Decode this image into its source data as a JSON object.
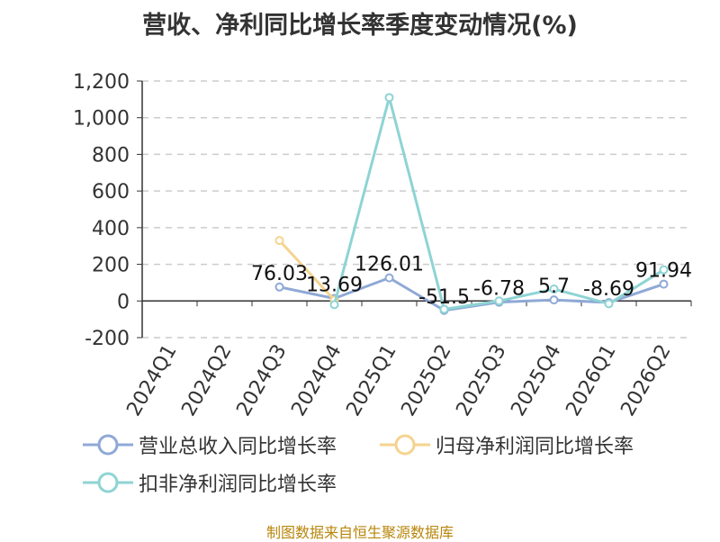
{
  "title": "营收、净利同比增长率季度变动情况(%)",
  "source": "制图数据来自恒生聚源数据库",
  "colors": {
    "revenue": "#8fa9d6",
    "net_profit": "#f5d38f",
    "deducted_profit": "#8ed4d4",
    "axis": "#333333",
    "grid": "#cccccc"
  },
  "chart_data": {
    "type": "line",
    "title": "营收、净利同比增长率季度变动情况(%)",
    "xlabel": "",
    "ylabel": "",
    "ylim": [
      -200,
      1200
    ],
    "yticks": [
      -200,
      0,
      200,
      400,
      600,
      800,
      1000,
      1200
    ],
    "ytick_labels": [
      "-200",
      "0",
      "200",
      "400",
      "600",
      "800",
      "1,000",
      "1,200"
    ],
    "grid": true,
    "legend_position": "bottom",
    "categories": [
      "2024Q1",
      "2024Q2",
      "2024Q3",
      "2024Q4",
      "2025Q1",
      "2025Q2",
      "2025Q3",
      "2025Q4",
      "2026Q1",
      "2026Q2"
    ],
    "series": [
      {
        "name": "营业总收入同比增长率",
        "values": [
          null,
          null,
          76.03,
          13.69,
          126.01,
          -51.5,
          -6.78,
          5.7,
          -8.69,
          91.94
        ],
        "labels": [
          "",
          "",
          "76.03",
          "13.69",
          "126.01",
          "-51.5",
          "-6.78",
          "5.7",
          "-8.69",
          "91.94"
        ]
      },
      {
        "name": "归母净利润同比增长率",
        "values": [
          null,
          null,
          330,
          5,
          null,
          null,
          null,
          null,
          null,
          null
        ]
      },
      {
        "name": "扣非净利润同比增长率",
        "values": [
          null,
          null,
          null,
          -20,
          1110,
          -45,
          0,
          65,
          -15,
          170
        ]
      }
    ]
  }
}
